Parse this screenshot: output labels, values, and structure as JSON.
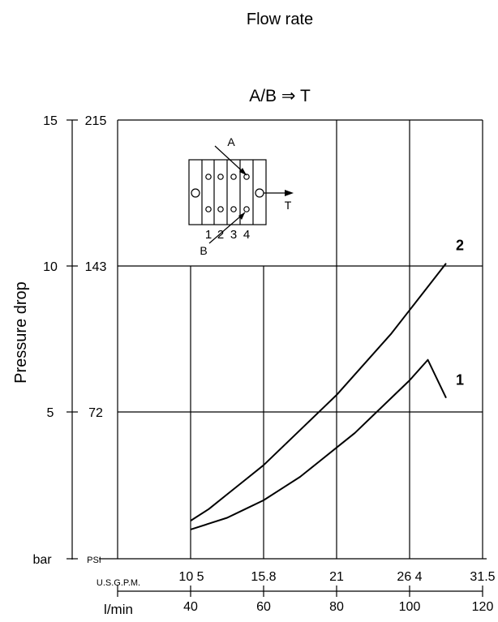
{
  "chart_data": {
    "type": "line",
    "title": "Flow rate",
    "subtitle": "A/B ⇒ T",
    "ylabel": "Pressure drop",
    "bar_ticks": [
      "15",
      "10",
      "5"
    ],
    "bar_unit": "bar",
    "psi_ticks": [
      "215",
      "143",
      "72"
    ],
    "psi_unit": "PSI",
    "gpm_unit": "U.S.G.P.M.",
    "gpm_ticks": [
      "10 5",
      "15.8",
      "21",
      "26 4",
      "31.5"
    ],
    "lmin_unit": "l/min",
    "lmin_ticks": [
      "40",
      "60",
      "80",
      "100",
      "120"
    ],
    "xlim": [
      20,
      120
    ],
    "ylim": [
      0,
      15
    ],
    "grid": true,
    "series": [
      {
        "name": "2",
        "x": [
          40,
          45,
          50,
          55,
          60,
          65,
          70,
          75,
          80,
          85,
          90,
          95,
          100,
          105,
          110
        ],
        "y": [
          1.3,
          1.7,
          2.2,
          2.7,
          3.2,
          3.8,
          4.4,
          5.0,
          5.6,
          6.3,
          7.0,
          7.7,
          8.5,
          9.3,
          10.1
        ]
      },
      {
        "name": "1",
        "x": [
          40,
          45,
          50,
          55,
          60,
          65,
          70,
          75,
          80,
          85,
          90,
          95,
          100,
          105,
          110
        ],
        "y": [
          1.0,
          1.2,
          1.4,
          1.7,
          2.0,
          2.4,
          2.8,
          3.3,
          3.8,
          4.3,
          4.9,
          5.5,
          6.1,
          6.8,
          5.5
        ]
      }
    ]
  },
  "inset": {
    "label_a": "A",
    "label_b": "B",
    "label_t": "T",
    "section_labels": [
      "1",
      "2",
      "3",
      "4"
    ]
  }
}
